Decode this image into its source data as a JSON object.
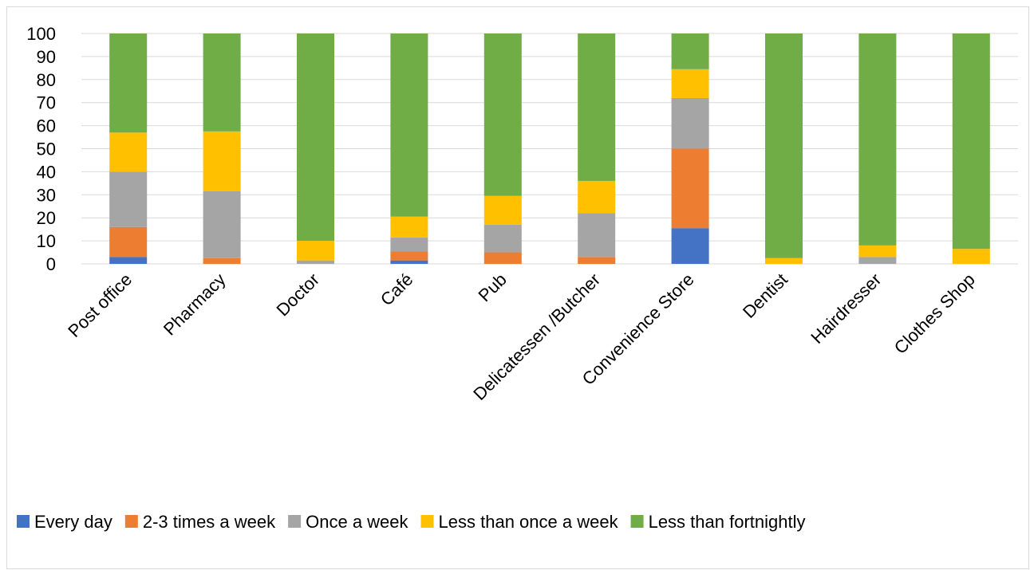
{
  "chart_data": {
    "type": "bar",
    "stacked": true,
    "title": "",
    "xlabel": "",
    "ylabel": "",
    "ylim": [
      0,
      100
    ],
    "yticks": [
      0,
      10,
      20,
      30,
      40,
      50,
      60,
      70,
      80,
      90,
      100
    ],
    "grid": true,
    "legend_position": "bottom",
    "categories": [
      "Post office",
      "Pharmacy",
      "Doctor",
      "Café",
      "Pub",
      "Delicatessen /Butcher",
      "Convenience Store",
      "Dentist",
      "Hairdresser",
      "Clothes Shop"
    ],
    "series": [
      {
        "name": "Every day",
        "color": "#4472C4",
        "values": [
          3,
          0,
          0,
          1.5,
          0,
          0,
          15.5,
          0,
          0,
          0
        ]
      },
      {
        "name": "2-3 times a week",
        "color": "#ED7D31",
        "values": [
          13,
          2.5,
          0,
          4,
          5,
          3,
          34.5,
          0,
          0,
          0
        ]
      },
      {
        "name": "Once a week",
        "color": "#A5A5A5",
        "values": [
          24,
          29,
          1.5,
          6,
          12,
          19,
          22,
          0,
          3,
          0
        ]
      },
      {
        "name": "Less than once a week",
        "color": "#FFC000",
        "values": [
          17,
          26,
          8.5,
          9,
          12.5,
          14,
          12.5,
          2.5,
          5,
          6.5
        ]
      },
      {
        "name": "Less than fortnightly",
        "color": "#70AD47",
        "values": [
          43,
          42.5,
          90,
          79.5,
          70.5,
          64,
          15.5,
          97.5,
          92,
          93.5
        ]
      }
    ]
  }
}
